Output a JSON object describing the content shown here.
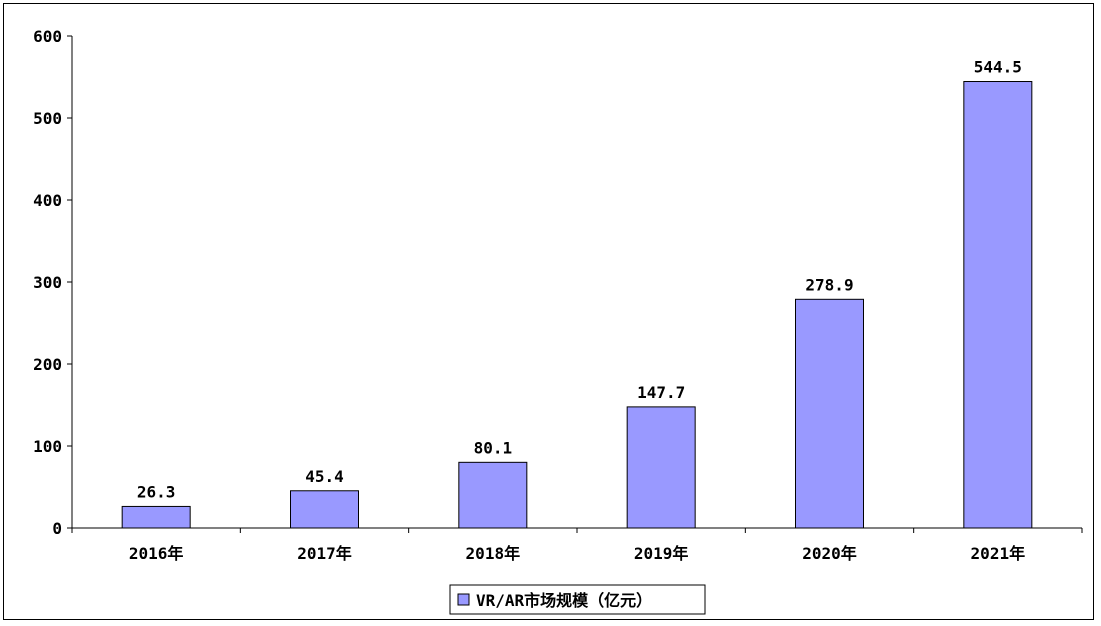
{
  "chart_data": {
    "type": "bar",
    "title": "",
    "xlabel": "",
    "ylabel": "",
    "categories": [
      "2016年",
      "2017年",
      "2018年",
      "2019年",
      "2020年",
      "2021年"
    ],
    "series": [
      {
        "name": "VR/AR市场规模（亿元）",
        "values": [
          26.3,
          45.4,
          80.1,
          147.7,
          278.9,
          544.5
        ],
        "data_labels": [
          "26.3",
          "45.4",
          "80.1",
          "147.7",
          "278.9",
          "544.5"
        ],
        "color": "#9999ff"
      }
    ],
    "yticks": [
      "0",
      "100",
      "200",
      "300",
      "400",
      "500",
      "600"
    ],
    "ylim": [
      0,
      600
    ],
    "grid": false,
    "legend_position": "bottom-center"
  }
}
